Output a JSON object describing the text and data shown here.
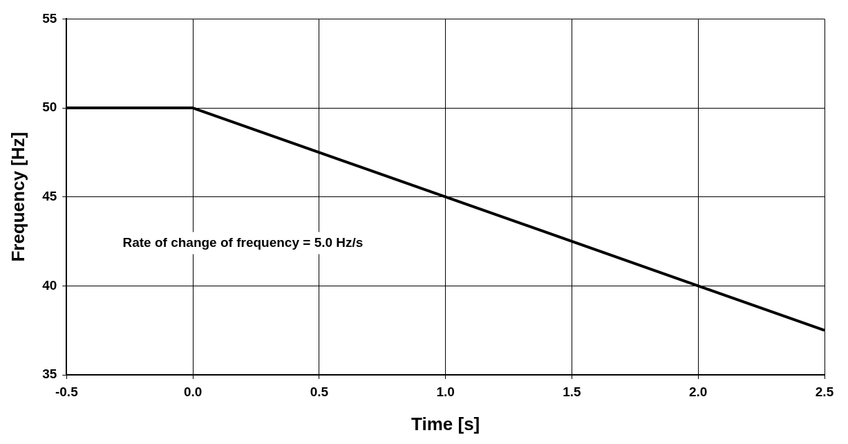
{
  "chart_data": {
    "type": "line",
    "xlabel": "Time [s]",
    "ylabel": "Frequency [Hz]",
    "series": [
      {
        "color": "#000000",
        "x": [
          -0.5,
          0,
          2.5
        ],
        "values": [
          50,
          50,
          37.5
        ]
      }
    ],
    "xlim": [
      -0.5,
      2.5
    ],
    "xticks": [
      -0.5,
      {
        "value": 0,
        "label": "0.0"
      },
      0.5,
      {
        "value": 1,
        "label": "1.0"
      },
      1.5,
      {
        "value": 2,
        "label": "2.0"
      },
      2.5
    ],
    "ylim": [
      35,
      55
    ],
    "yticks": [
      35,
      40,
      45,
      50,
      55
    ],
    "grid": true,
    "legend": false,
    "marker": "none",
    "line_style": "solid",
    "annotations": [
      "Rate of change of frequency = 5.0 Hz/s"
    ]
  }
}
